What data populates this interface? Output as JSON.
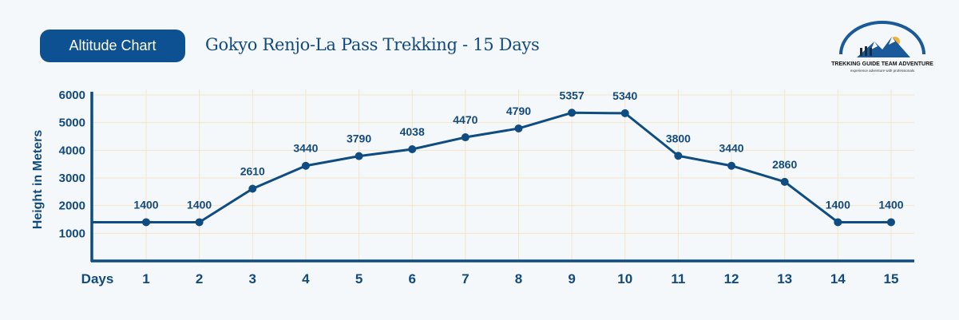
{
  "header": {
    "badge_label": "Altitude Chart",
    "title": "Gokyo Renjo-La Pass Trekking - 15 Days"
  },
  "logo": {
    "name": "TREKKING GUIDE TEAM ADVENTURE",
    "tagline": "experience adventure with professionals"
  },
  "colors": {
    "line": "#0f4c81",
    "grid": "#f6e4c8",
    "background": "#f4f8fb",
    "badge": "#0d5192"
  },
  "chart_data": {
    "type": "line",
    "xlabel": "Days",
    "ylabel": "Height in Meters",
    "categories": [
      "1",
      "2",
      "3",
      "4",
      "5",
      "6",
      "7",
      "8",
      "9",
      "10",
      "11",
      "12",
      "13",
      "14",
      "15"
    ],
    "values": [
      1400,
      1400,
      2610,
      3440,
      3790,
      4038,
      4470,
      4790,
      5357,
      5340,
      3800,
      3440,
      2860,
      1400,
      1400
    ],
    "yticks": [
      1000,
      2000,
      3000,
      4000,
      5000,
      6000
    ],
    "ylim": [
      0,
      6000
    ],
    "grid": true
  }
}
